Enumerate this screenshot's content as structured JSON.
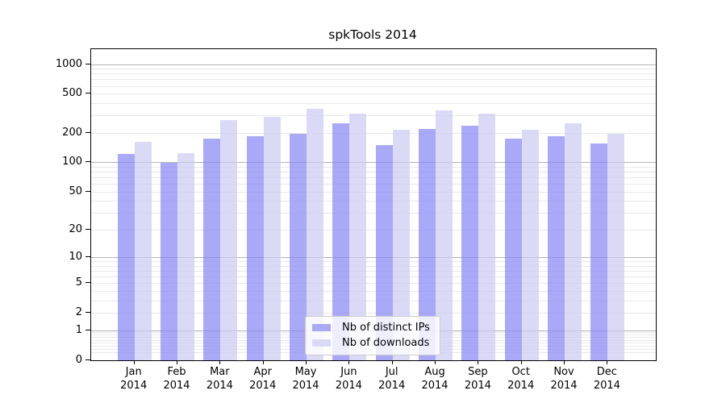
{
  "title": "spkTools 2014",
  "colors": {
    "distinct_ips": "#a9a9f7",
    "downloads": "#dadaf7",
    "grid_minor": "#e9e9e9",
    "grid_major": "#b3b3b3",
    "axis": "#000000",
    "legend_border": "#cccccc"
  },
  "y_axis": {
    "scale": "log10(1+x)",
    "tick_values": [
      0,
      1,
      2,
      5,
      10,
      20,
      50,
      100,
      200,
      500,
      1000
    ],
    "tick_labels": [
      "0",
      "1",
      "2",
      "5",
      "10",
      "20",
      "50",
      "100",
      "200",
      "500",
      "1000"
    ]
  },
  "x_axis": {
    "months": [
      "Jan",
      "Feb",
      "Mar",
      "Apr",
      "May",
      "Jun",
      "Jul",
      "Aug",
      "Sep",
      "Oct",
      "Nov",
      "Dec"
    ],
    "year": "2014"
  },
  "legend": {
    "items": [
      {
        "label": "Nb of distinct IPs",
        "series": "distinct_ips"
      },
      {
        "label": "Nb of downloads",
        "series": "downloads"
      }
    ]
  },
  "chart_data": {
    "type": "bar",
    "title": "spkTools 2014",
    "categories": [
      "Jan 2014",
      "Feb 2014",
      "Mar 2014",
      "Apr 2014",
      "May 2014",
      "Jun 2014",
      "Jul 2014",
      "Aug 2014",
      "Sep 2014",
      "Oct 2014",
      "Nov 2014",
      "Dec 2014"
    ],
    "series": [
      {
        "name": "Nb of distinct IPs",
        "color": "#a9a9f7",
        "values": [
          124,
          100,
          176,
          188,
          199,
          254,
          152,
          222,
          237,
          177,
          186,
          156
        ]
      },
      {
        "name": "Nb of downloads",
        "color": "#dadaf7",
        "values": [
          163,
          125,
          272,
          296,
          356,
          317,
          216,
          339,
          319,
          216,
          252,
          198
        ]
      }
    ],
    "xlabel": "",
    "ylabel": "",
    "y_scale": "log1p",
    "ylim": [
      0,
      1430
    ],
    "y_ticks": [
      0,
      1,
      2,
      5,
      10,
      20,
      50,
      100,
      200,
      500,
      1000
    ],
    "grid": true,
    "legend_position": "lower-center-inside"
  }
}
